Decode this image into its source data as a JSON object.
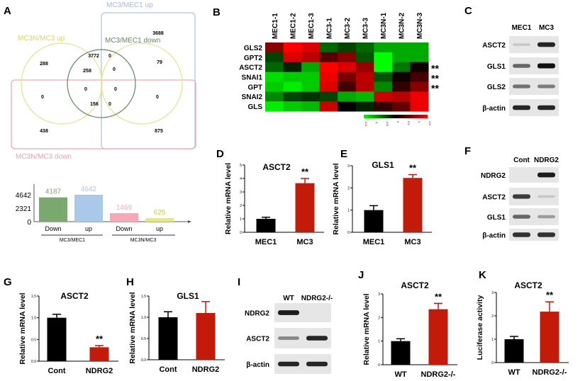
{
  "panel_letters": [
    "A",
    "B",
    "C",
    "D",
    "E",
    "F",
    "G",
    "H",
    "I",
    "J",
    "K"
  ],
  "colors": {
    "bar_control": "#000000",
    "bar_treat": "#c31a0a",
    "venn_up": "#aac8e6",
    "venn_down": "#f2a6b4",
    "venn_n_up": "#e3e38a",
    "venn_green": "#5e8a5e",
    "heat_low": "#00ff00",
    "heat_mid": "#000000",
    "heat_high": "#ff0000"
  },
  "venn": {
    "set_labels": {
      "mc3_mec1_up": "MC3/MEC1 up",
      "mc3n_mc3_up": "MC3N/MC3 up",
      "mc3_mec1_down": "MC3/MEC1 down",
      "mc3n_mc3_down": "MC3N/MC3 down"
    },
    "counts": [
      "3688",
      "3772",
      "0",
      "288",
      "258",
      "0",
      "79",
      "0",
      "0",
      "0",
      "0",
      "156",
      "0",
      "438",
      "875"
    ]
  },
  "chart_data": [
    {
      "panel": "A",
      "type": "bar",
      "categories": [
        "Down",
        "up",
        "Down",
        "up"
      ],
      "groups": [
        "MC3/MEC1",
        "MC3N/MC3"
      ],
      "values": [
        4187,
        4642,
        1469,
        625
      ],
      "value_labels": [
        "4187",
        "4642",
        "1469",
        "625"
      ],
      "yticks": [
        "4642",
        "2321",
        "0"
      ],
      "ylim": [
        0,
        4642
      ],
      "bar_colors": [
        "#7aa86e",
        "#a9c8ea",
        "#f6a9b5",
        "#e6e68a"
      ]
    },
    {
      "panel": "B",
      "type": "heatmap",
      "columns": [
        "MEC1-1",
        "MEC1-2",
        "MEC1-3",
        "MC3-1",
        "MC3-2",
        "MC3-3",
        "MC3N-1",
        "MC3N-2",
        "MC3N-3"
      ],
      "rows": [
        "GLS2",
        "GPT2",
        "ASCT2",
        "SNAI1",
        "GPT",
        "SNAI2",
        "GLS"
      ],
      "values": [
        [
          0.8,
          1.5,
          1.3,
          -0.6,
          -0.4,
          -0.6,
          -1.0,
          -1.0,
          -1.0
        ],
        [
          -0.4,
          1.3,
          1.1,
          0.5,
          0.8,
          -0.5,
          -1.5,
          -1.0,
          -1.0
        ],
        [
          -0.6,
          -0.2,
          -1.0,
          1.5,
          1.3,
          0.9,
          -1.5,
          -0.7,
          0.1
        ],
        [
          -1.3,
          -1.2,
          -1.2,
          1.4,
          0.7,
          1.1,
          -0.5,
          0.1,
          0.4
        ],
        [
          -1.2,
          -1.4,
          -1.2,
          1.3,
          0.4,
          1.1,
          -0.8,
          0.3,
          0.8
        ],
        [
          -0.8,
          -0.4,
          -0.3,
          -0.4,
          -1.0,
          -1.1,
          1.2,
          1.1,
          1.4
        ],
        [
          -1.4,
          -1.2,
          -1.1,
          1.2,
          0.0,
          -0.2,
          0.3,
          0.6,
          1.4
        ]
      ],
      "significance": [
        "",
        "",
        "**",
        "**",
        "**",
        "",
        ""
      ],
      "colorbar_ticks": [
        "-1.5",
        "-1",
        "-0.5",
        "0",
        "0.5",
        "1",
        "1.5"
      ],
      "range": [
        -1.5,
        1.5
      ]
    },
    {
      "panel": "D",
      "type": "bar",
      "title": "ASCT2",
      "ylabel": "Relative mRNA level",
      "categories": [
        "MEC1",
        "MC3"
      ],
      "values": [
        1.0,
        3.65
      ],
      "errors": [
        0.12,
        0.35
      ],
      "significance": "**",
      "yticks": [
        "0",
        "1",
        "2",
        "3",
        "4",
        "5"
      ],
      "ylim": [
        0,
        5
      ]
    },
    {
      "panel": "E",
      "type": "bar",
      "title": "GLS1",
      "ylabel": "Relative mRNA level",
      "categories": [
        "MEC1",
        "MC3"
      ],
      "values": [
        1.0,
        2.45
      ],
      "errors": [
        0.2,
        0.15
      ],
      "significance": "**",
      "yticks": [
        "0",
        "1",
        "2",
        "3"
      ],
      "ylim": [
        0,
        3
      ]
    },
    {
      "panel": "G",
      "type": "bar",
      "title": "ASCT2",
      "ylabel": "Relative mRNA level",
      "categories": [
        "Cont",
        "NDRG2"
      ],
      "values": [
        1.0,
        0.32
      ],
      "errors": [
        0.08,
        0.04
      ],
      "significance": "**",
      "yticks": [
        "0.0",
        "0.5",
        "1.0",
        "1.5"
      ],
      "ylim": [
        0,
        1.5
      ]
    },
    {
      "panel": "H",
      "type": "bar",
      "title": "GLS1",
      "ylabel": "Relative mRNA level",
      "categories": [
        "Cont",
        "NDRG2"
      ],
      "values": [
        1.0,
        1.1
      ],
      "errors": [
        0.13,
        0.27
      ],
      "significance": "",
      "yticks": [
        "0.0",
        "0.5",
        "1.0",
        "1.5"
      ],
      "ylim": [
        0,
        1.5
      ]
    },
    {
      "panel": "J",
      "type": "bar",
      "title": "ASCT2",
      "ylabel": "Relative mRNA level",
      "categories": [
        "WT",
        "NDRG2-/-"
      ],
      "values": [
        1.0,
        2.35
      ],
      "errors": [
        0.1,
        0.25
      ],
      "significance": "**",
      "yticks": [
        "0",
        "1",
        "2",
        "3"
      ],
      "ylim": [
        0,
        3
      ]
    },
    {
      "panel": "K",
      "type": "bar",
      "title": "ASCT2",
      "ylabel": "Luciferase activity",
      "categories": [
        "WT",
        "NDRG2-/-"
      ],
      "values": [
        1.0,
        2.18
      ],
      "errors": [
        0.12,
        0.42
      ],
      "significance": "**",
      "yticks": [
        "0",
        "1",
        "2",
        "3"
      ],
      "ylim": [
        0,
        3
      ]
    }
  ],
  "blots": {
    "C": {
      "lanes": [
        "MEC1",
        "MC3"
      ],
      "rows": [
        "ASCT2",
        "GLS1",
        "GLS2",
        "β-actin"
      ],
      "intensity": [
        [
          0.15,
          0.9
        ],
        [
          0.6,
          1.0
        ],
        [
          0.55,
          0.5
        ],
        [
          0.9,
          0.9
        ]
      ]
    },
    "F": {
      "lanes": [
        "Cont",
        "NDRG2"
      ],
      "rows": [
        "NDRG2",
        "ASCT2",
        "GLS1",
        "β-actin"
      ],
      "intensity": [
        [
          0.0,
          0.95
        ],
        [
          0.8,
          0.15
        ],
        [
          0.6,
          0.35
        ],
        [
          0.85,
          0.85
        ]
      ]
    },
    "I": {
      "lanes": [
        "WT",
        "NDRG2-/-"
      ],
      "rows": [
        "NDRG2",
        "ASCT2",
        "β-actin"
      ],
      "intensity": [
        [
          0.95,
          0.0
        ],
        [
          0.45,
          0.9
        ],
        [
          0.9,
          0.9
        ]
      ]
    }
  }
}
